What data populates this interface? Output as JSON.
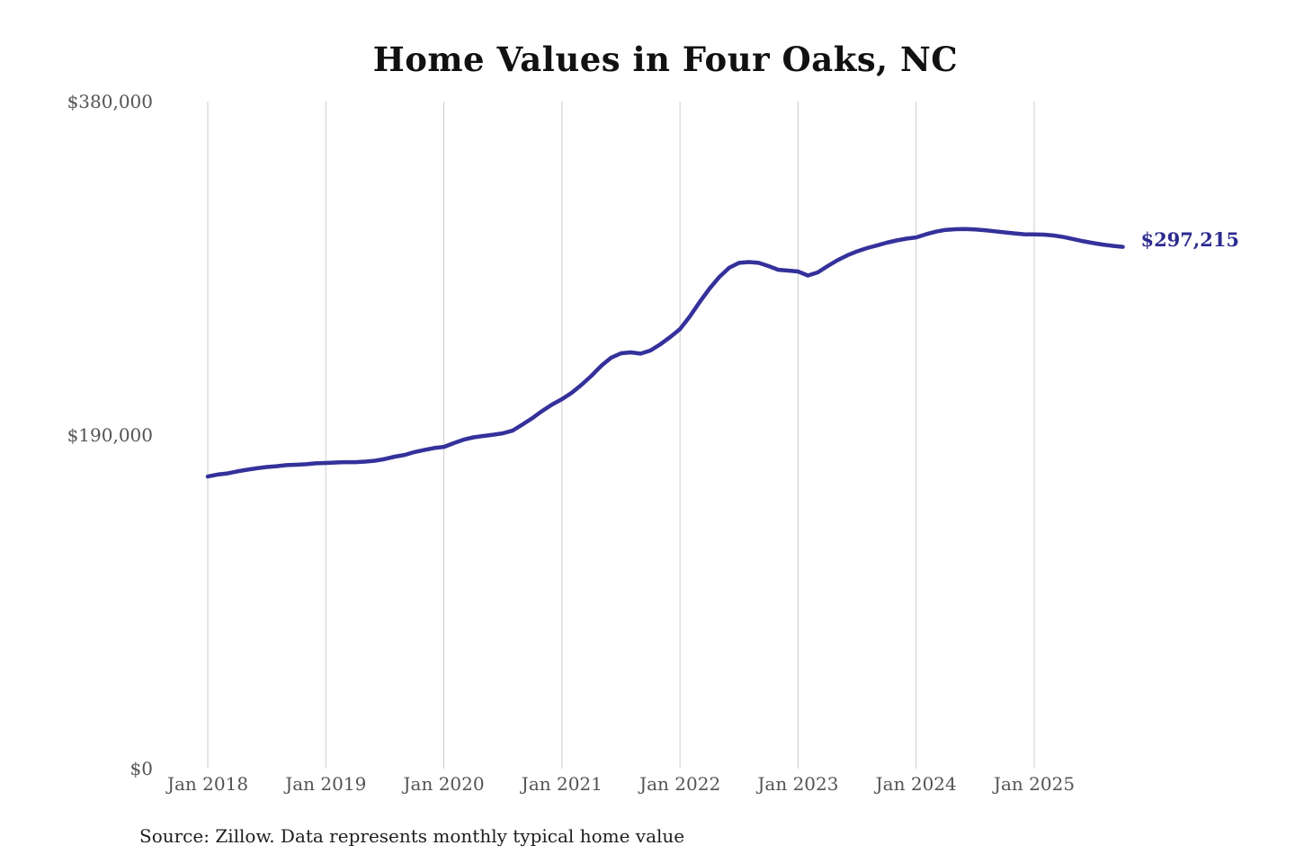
{
  "page": {
    "title": "Home Values in Four Oaks, NC",
    "source_note": "Source: Zillow. Data represents monthly typical home value"
  },
  "chart_data": {
    "type": "line",
    "title": "Home Values in Four Oaks, NC",
    "xlabel": "",
    "ylabel": "",
    "unit": "USD",
    "frequency": "monthly",
    "x_start": "2018-01",
    "x_end": "2025-10",
    "ylim": [
      0,
      380000
    ],
    "grid": "vertical-only",
    "grid_color": "#cccccc",
    "background_color": "#ffffff",
    "y_ticks": [
      {
        "value": 0,
        "label": "$0"
      },
      {
        "value": 190000,
        "label": "$190,000"
      },
      {
        "value": 380000,
        "label": "$380,000"
      }
    ],
    "x_ticks": [
      {
        "month_index": 0,
        "label": "Jan 2018"
      },
      {
        "month_index": 12,
        "label": "Jan 2019"
      },
      {
        "month_index": 24,
        "label": "Jan 2020"
      },
      {
        "month_index": 36,
        "label": "Jan 2021"
      },
      {
        "month_index": 48,
        "label": "Jan 2022"
      },
      {
        "month_index": 60,
        "label": "Jan 2023"
      },
      {
        "month_index": 72,
        "label": "Jan 2024"
      },
      {
        "month_index": 84,
        "label": "Jan 2025"
      }
    ],
    "annotation": {
      "text": "$297,215",
      "value": 297215,
      "color": "#2d2b8f",
      "position": "line-end"
    },
    "series": [
      {
        "name": "Typical home value",
        "color": "#34319b",
        "line_width": 4.5,
        "months": [
          "2018-01",
          "2018-02",
          "2018-03",
          "2018-04",
          "2018-05",
          "2018-06",
          "2018-07",
          "2018-08",
          "2018-09",
          "2018-10",
          "2018-11",
          "2018-12",
          "2019-01",
          "2019-02",
          "2019-03",
          "2019-04",
          "2019-05",
          "2019-06",
          "2019-07",
          "2019-08",
          "2019-09",
          "2019-10",
          "2019-11",
          "2019-12",
          "2020-01",
          "2020-02",
          "2020-03",
          "2020-04",
          "2020-05",
          "2020-06",
          "2020-07",
          "2020-08",
          "2020-09",
          "2020-10",
          "2020-11",
          "2020-12",
          "2021-01",
          "2021-02",
          "2021-03",
          "2021-04",
          "2021-05",
          "2021-06",
          "2021-07",
          "2021-08",
          "2021-09",
          "2021-10",
          "2021-11",
          "2021-12",
          "2022-01",
          "2022-02",
          "2022-03",
          "2022-04",
          "2022-05",
          "2022-06",
          "2022-07",
          "2022-08",
          "2022-09",
          "2022-10",
          "2022-11",
          "2022-12",
          "2023-01",
          "2023-02",
          "2023-03",
          "2023-04",
          "2023-05",
          "2023-06",
          "2023-07",
          "2023-08",
          "2023-09",
          "2023-10",
          "2023-11",
          "2023-12",
          "2024-01",
          "2024-02",
          "2024-03",
          "2024-04",
          "2024-05",
          "2024-06",
          "2024-07",
          "2024-08",
          "2024-09",
          "2024-10",
          "2024-11",
          "2024-12",
          "2025-01",
          "2025-02",
          "2025-03",
          "2025-04",
          "2025-05",
          "2025-06",
          "2025-07",
          "2025-08",
          "2025-09",
          "2025-10"
        ],
        "values": [
          166400,
          167500,
          168200,
          169300,
          170300,
          171100,
          171800,
          172300,
          172900,
          173100,
          173400,
          173900,
          174100,
          174400,
          174600,
          174600,
          174900,
          175400,
          176400,
          177700,
          178700,
          180300,
          181500,
          182600,
          183300,
          185400,
          187400,
          188700,
          189500,
          190200,
          191000,
          192600,
          196100,
          199700,
          203800,
          207400,
          210500,
          214100,
          218700,
          223800,
          229500,
          234100,
          236600,
          237100,
          236400,
          238200,
          241700,
          245800,
          250400,
          257600,
          265800,
          273500,
          280100,
          285300,
          288100,
          288600,
          288100,
          286300,
          284200,
          283700,
          283200,
          280900,
          282700,
          286300,
          289600,
          292400,
          294700,
          296500,
          298000,
          299600,
          300900,
          301900,
          302600,
          304400,
          305900,
          306900,
          307300,
          307400,
          307100,
          306700,
          306100,
          305500,
          304900,
          304400,
          304300,
          304200,
          303700,
          302800,
          301600,
          300400,
          299400,
          298500,
          297800,
          297215
        ]
      }
    ]
  }
}
